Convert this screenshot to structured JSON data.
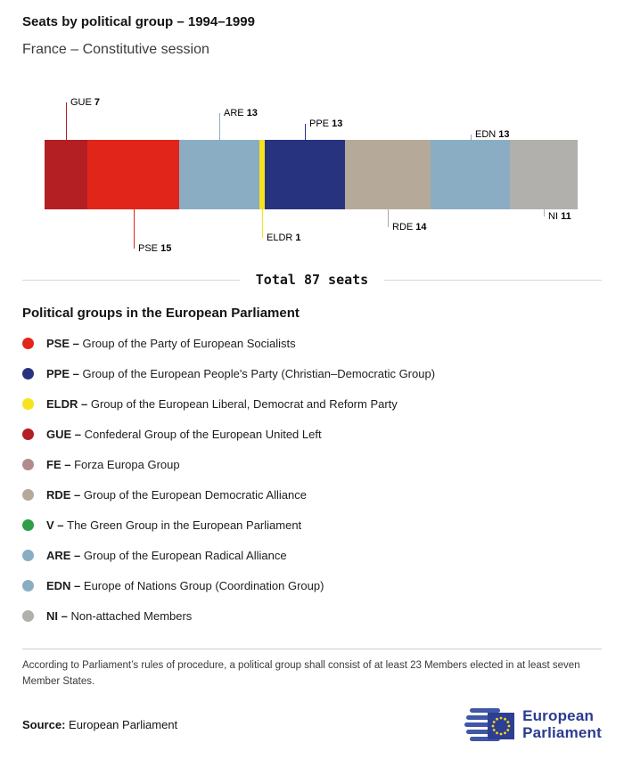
{
  "header": {
    "title": "Seats by political group – 1994–1999",
    "subtitle": "France – Constitutive session"
  },
  "chart_data": {
    "type": "bar",
    "stacked": true,
    "orientation": "horizontal",
    "title": "Seats by political group – 1994–1999",
    "subtitle": "France – Constitutive session",
    "total": 87,
    "total_label": "Total 87 seats",
    "categories": [
      "GUE",
      "PSE",
      "ARE",
      "ELDR",
      "PPE",
      "RDE",
      "EDN",
      "NI"
    ],
    "values": [
      7,
      15,
      13,
      1,
      13,
      14,
      13,
      11
    ],
    "segments": [
      {
        "code": "GUE",
        "seats": 7,
        "color": "#b41f24",
        "side": "above",
        "tier": 3
      },
      {
        "code": "PSE",
        "seats": 15,
        "color": "#e2251b",
        "side": "below",
        "tier": 3
      },
      {
        "code": "ARE",
        "seats": 13,
        "color": "#8badc4",
        "side": "above",
        "tier": 2
      },
      {
        "code": "ELDR",
        "seats": 1,
        "color": "#f5e31d",
        "side": "below",
        "tier": 2
      },
      {
        "code": "PPE",
        "seats": 13,
        "color": "#283380",
        "side": "above",
        "tier": 1
      },
      {
        "code": "RDE",
        "seats": 14,
        "color": "#b5aa99",
        "side": "below",
        "tier": 1
      },
      {
        "code": "EDN",
        "seats": 13,
        "color": "#8badc4",
        "side": "above",
        "tier": 0
      },
      {
        "code": "NI",
        "seats": 11,
        "color": "#b1b0ad",
        "side": "below",
        "tier": 0
      }
    ]
  },
  "legend": {
    "heading": "Political groups in the European Parliament",
    "items": [
      {
        "code": "PSE",
        "label": "PSE –",
        "description": "Group of the Party of European Socialists",
        "color": "#e2251b"
      },
      {
        "code": "PPE",
        "label": "PPE –",
        "description": "Group of the European People's Party (Christian–Democratic Group)",
        "color": "#283380"
      },
      {
        "code": "ELDR",
        "label": "ELDR –",
        "description": "Group of the European Liberal, Democrat and Reform Party",
        "color": "#f5e31d"
      },
      {
        "code": "GUE",
        "label": "GUE –",
        "description": "Confederal Group of the European United Left",
        "color": "#b41f24"
      },
      {
        "code": "FE",
        "label": "FE –",
        "description": "Forza Europa Group",
        "color": "#b18b8d"
      },
      {
        "code": "RDE",
        "label": "RDE –",
        "description": "Group of the European Democratic Alliance",
        "color": "#b5aa99"
      },
      {
        "code": "V",
        "label": "V –",
        "description": "The Green Group in the European Parliament",
        "color": "#2f9e49"
      },
      {
        "code": "ARE",
        "label": "ARE –",
        "description": "Group of the European Radical Alliance",
        "color": "#8badc4"
      },
      {
        "code": "EDN",
        "label": "EDN –",
        "description": "Europe of Nations Group (Coordination Group)",
        "color": "#8badc4"
      },
      {
        "code": "NI",
        "label": "NI –",
        "description": "Non-attached Members",
        "color": "#b1b0ad"
      }
    ]
  },
  "footer": {
    "note": "According to Parliament’s rules of procedure, a political group shall consist of at least 23 Members elected in at least seven Member States.",
    "source_label": "Source:",
    "source_value": "European Parliament",
    "logo_line1": "European",
    "logo_line2": "Parliament"
  }
}
